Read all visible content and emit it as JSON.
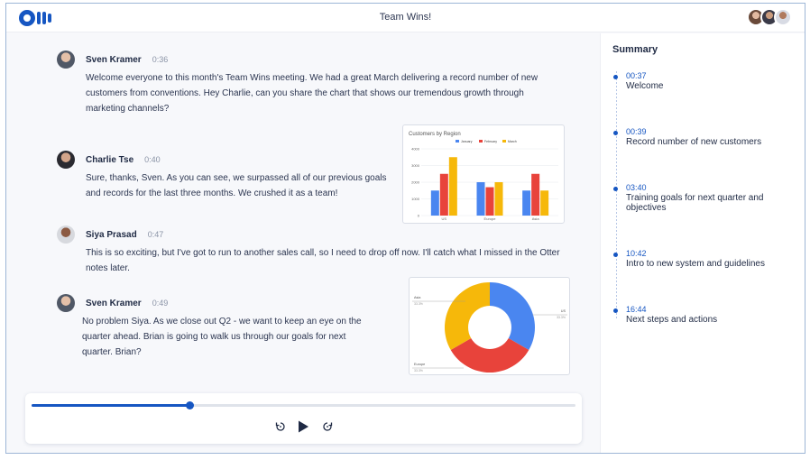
{
  "header": {
    "title": "Team Wins!"
  },
  "colors": {
    "brand": "#1656c2",
    "series": [
      "#4a86f0",
      "#e8433b",
      "#f6b80a"
    ]
  },
  "messages": [
    {
      "name": "Sven Kramer",
      "time": "0:36",
      "text": "Welcome everyone to this month's Team Wins meeting. We had a great March delivering a record number of new customers from conventions. Hey Charlie, can you share the chart that shows our tremendous growth through marketing channels?"
    },
    {
      "name": "Charlie Tse",
      "time": "0:40",
      "text": "Sure, thanks, Sven. As you can see, we surpassed all of our previous goals and records for the last three months. We crushed it as a team!"
    },
    {
      "name": "Siya Prasad",
      "time": "0:47",
      "text": "This is so exciting, but I've got to run to another sales call, so I need to drop off now. I'll catch what I missed in the Otter notes later."
    },
    {
      "name": "Sven Kramer",
      "time": "0:49",
      "text": "No problem Siya. As we close out Q2 - we want to keep an eye on the quarter ahead. Brian is going to walk us through our goals for next quarter. Brian?"
    }
  ],
  "chart_data": [
    {
      "type": "bar",
      "title": "Customers by Region",
      "categories": [
        "US",
        "Europe",
        "Asia"
      ],
      "series": [
        {
          "name": "January",
          "values": [
            1500,
            2000,
            1500
          ]
        },
        {
          "name": "February",
          "values": [
            2500,
            1700,
            2500
          ]
        },
        {
          "name": "March",
          "values": [
            3500,
            2000,
            1500
          ]
        }
      ],
      "ylim": [
        0,
        4000
      ],
      "yticks": [
        "4000",
        "3000",
        "2000",
        "1000",
        "0"
      ],
      "legend": "top"
    },
    {
      "type": "pie",
      "donut": true,
      "slices": [
        {
          "label": "US",
          "pct": "33.3%",
          "value": 33.3
        },
        {
          "label": "Europe",
          "pct": "33.3%",
          "value": 33.3
        },
        {
          "label": "Asia",
          "pct": "33.3%",
          "value": 33.3
        }
      ]
    }
  ],
  "player": {
    "progress": 0.29
  },
  "summary": {
    "title": "Summary",
    "items": [
      {
        "time": "00:37",
        "label": "Welcome"
      },
      {
        "time": "00:39",
        "label": "Record number of new customers"
      },
      {
        "time": "03:40",
        "label": "Training goals for next quarter and objectives"
      },
      {
        "time": "10:42",
        "label": "Intro to new system and guidelines"
      },
      {
        "time": "16:44",
        "label": "Next steps and actions"
      }
    ]
  }
}
